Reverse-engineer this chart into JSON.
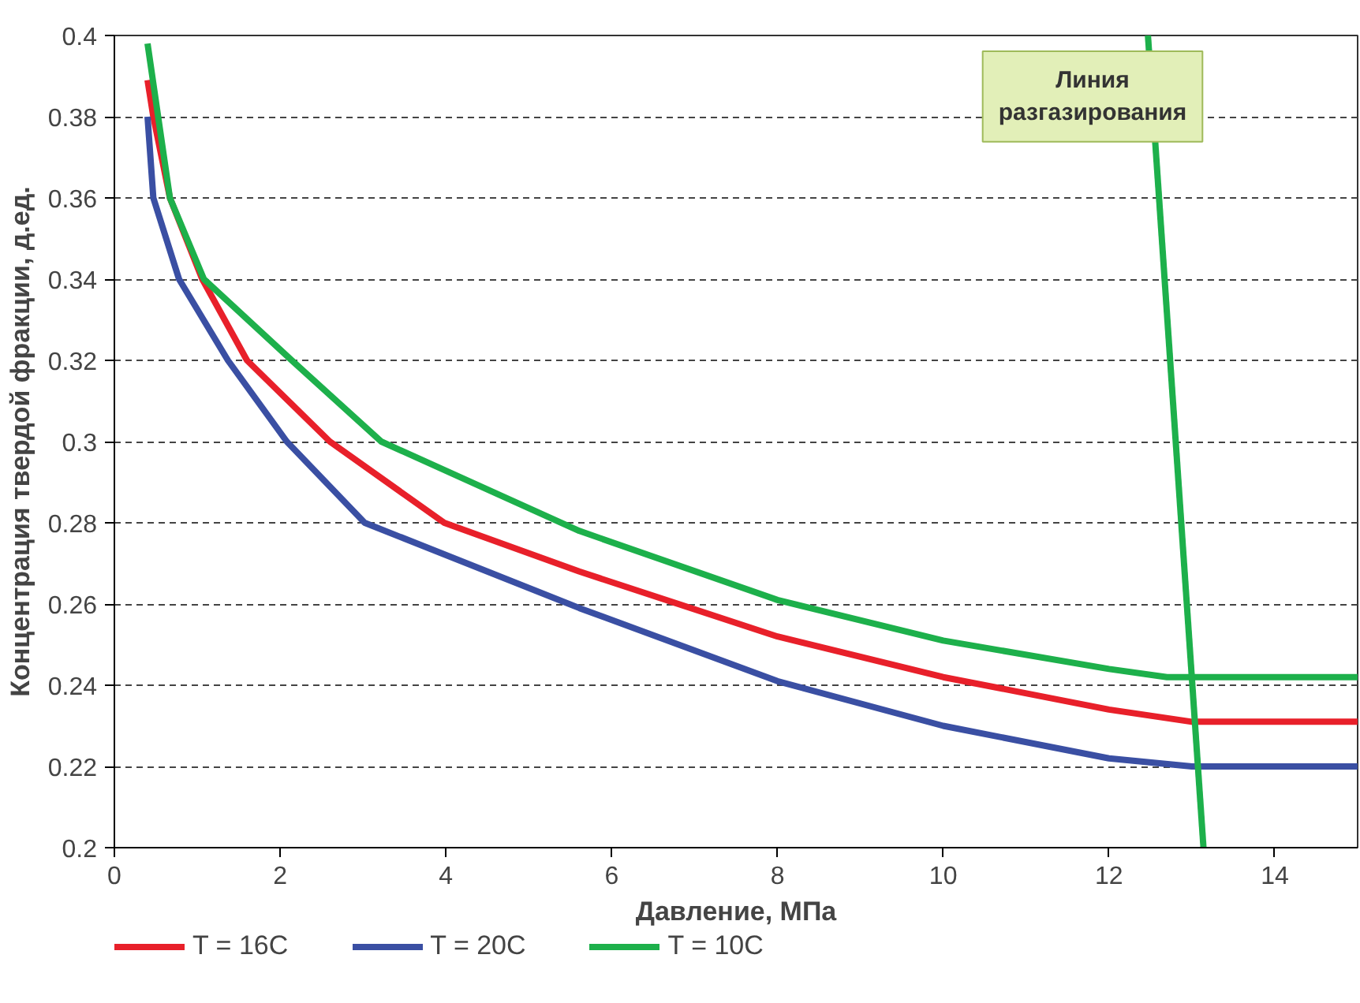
{
  "chart_data": {
    "type": "line",
    "xlabel": "Давление, МПа",
    "ylabel": "Концентрация твердой фракции, д.ед.",
    "xlim": [
      0,
      15
    ],
    "ylim": [
      0.2,
      0.4
    ],
    "xticks": [
      0,
      2,
      4,
      6,
      8,
      10,
      12,
      14
    ],
    "yticks": [
      0.2,
      0.22,
      0.24,
      0.26,
      0.28,
      0.3,
      0.32,
      0.34,
      0.36,
      0.38,
      0.4
    ],
    "grid": "y",
    "legend": "bottom",
    "line_style": "solid",
    "marker": "none",
    "annotations": [
      "Линия\nразгазирования"
    ],
    "series": [
      {
        "name": "T = 16C",
        "color": "#e8202a",
        "x": [
          0.4,
          0.47,
          0.67,
          1.06,
          1.6,
          2.6,
          3.98,
          5.61,
          8,
          10,
          12,
          13.0,
          15
        ],
        "values": [
          0.389,
          0.38,
          0.36,
          0.34,
          0.32,
          0.3,
          0.28,
          0.268,
          0.252,
          0.242,
          0.234,
          0.231,
          0.231
        ]
      },
      {
        "name": "T = 20C",
        "color": "#3a4fa3",
        "x": [
          0.4,
          0.47,
          0.78,
          1.37,
          2.08,
          3.02,
          5.61,
          8,
          10,
          12,
          13.0,
          15
        ],
        "values": [
          0.38,
          0.36,
          0.34,
          0.32,
          0.3,
          0.28,
          0.259,
          0.241,
          0.23,
          0.222,
          0.22,
          0.22
        ]
      },
      {
        "name": "T = 10C",
        "color": "#1db04b",
        "x": [
          0.4,
          0.67,
          1.08,
          2.14,
          3.22,
          5.61,
          8,
          10,
          12,
          12.7,
          15
        ],
        "values": [
          0.398,
          0.36,
          0.34,
          0.32,
          0.3,
          0.278,
          0.261,
          0.251,
          0.244,
          0.242,
          0.242
        ]
      },
      {
        "color": "#1db04b",
        "type": "line",
        "x": [
          12.47,
          13.14
        ],
        "values": [
          0.4,
          0.2
        ]
      }
    ]
  }
}
